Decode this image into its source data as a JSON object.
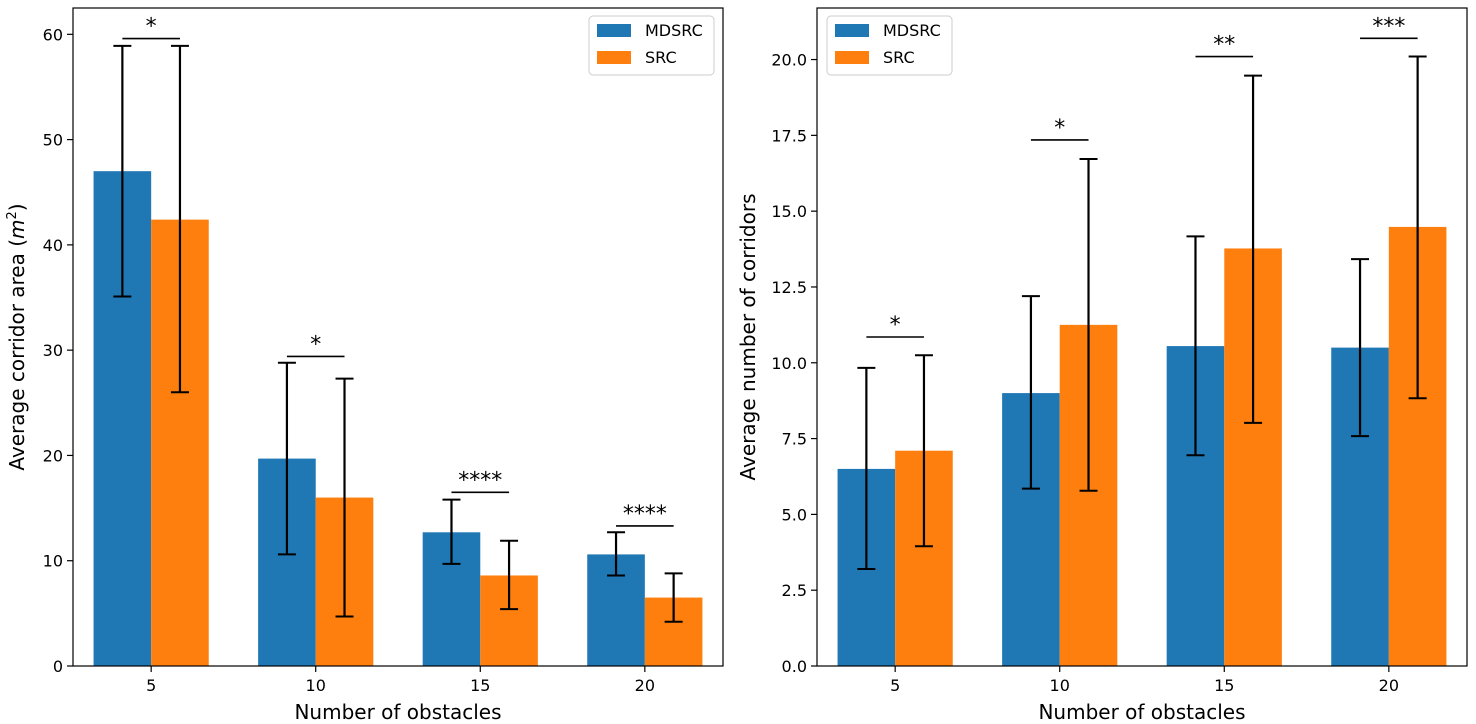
{
  "chart_data": [
    {
      "type": "bar",
      "xlabel": "Number of obstacles",
      "ylabel_prefix": "Average corridor area (",
      "ylabel_var": "m",
      "ylabel_sup": "2",
      "ylabel_suffix": ")",
      "categories": [
        "5",
        "10",
        "15",
        "20"
      ],
      "series": [
        {
          "name": "MDSRC",
          "color": "#1f77b4",
          "values": [
            47.0,
            19.7,
            12.7,
            10.6
          ],
          "err_low": [
            35.1,
            10.6,
            9.7,
            8.6
          ],
          "err_high": [
            58.9,
            28.8,
            15.8,
            12.7
          ]
        },
        {
          "name": "SRC",
          "color": "#ff7f0e",
          "values": [
            42.4,
            16.0,
            8.6,
            6.5
          ],
          "err_low": [
            26.0,
            4.7,
            5.4,
            4.2
          ],
          "err_high": [
            58.9,
            27.3,
            11.9,
            8.8
          ]
        }
      ],
      "significance": [
        {
          "category_index": 0,
          "label": "*",
          "y": 59.6
        },
        {
          "category_index": 1,
          "label": "*",
          "y": 29.4
        },
        {
          "category_index": 2,
          "label": "****",
          "y": 16.5
        },
        {
          "category_index": 3,
          "label": "****",
          "y": 13.3
        }
      ],
      "ylim": [
        0,
        62.5
      ],
      "yticks": [
        0,
        10,
        20,
        30,
        40,
        50,
        60
      ],
      "ytick_labels": [
        "0",
        "10",
        "20",
        "30",
        "40",
        "50",
        "60"
      ],
      "legend": "top-right"
    },
    {
      "type": "bar",
      "xlabel": "Number of obstacles",
      "ylabel": "Average number of corridors",
      "categories": [
        "5",
        "10",
        "15",
        "20"
      ],
      "series": [
        {
          "name": "MDSRC",
          "color": "#1f77b4",
          "values": [
            6.5,
            9.0,
            10.55,
            10.5
          ],
          "err_low": [
            3.2,
            5.85,
            6.95,
            7.58
          ],
          "err_high": [
            9.83,
            12.2,
            14.17,
            13.42
          ]
        },
        {
          "name": "SRC",
          "color": "#ff7f0e",
          "values": [
            7.1,
            11.25,
            13.77,
            14.48
          ],
          "err_low": [
            3.95,
            5.78,
            8.02,
            8.83
          ],
          "err_high": [
            10.25,
            16.72,
            19.47,
            20.1
          ]
        }
      ],
      "significance": [
        {
          "category_index": 0,
          "label": "*",
          "y": 10.85
        },
        {
          "category_index": 1,
          "label": "*",
          "y": 17.35
        },
        {
          "category_index": 2,
          "label": "**",
          "y": 20.1
        },
        {
          "category_index": 3,
          "label": "***",
          "y": 20.7
        }
      ],
      "ylim": [
        0,
        21.7
      ],
      "yticks": [
        0,
        2.5,
        5,
        7.5,
        10,
        12.5,
        15,
        17.5,
        20
      ],
      "ytick_labels": [
        "0.0",
        "2.5",
        "5.0",
        "7.5",
        "10.0",
        "12.5",
        "15.0",
        "17.5",
        "20.0"
      ],
      "legend": "top-left"
    }
  ]
}
